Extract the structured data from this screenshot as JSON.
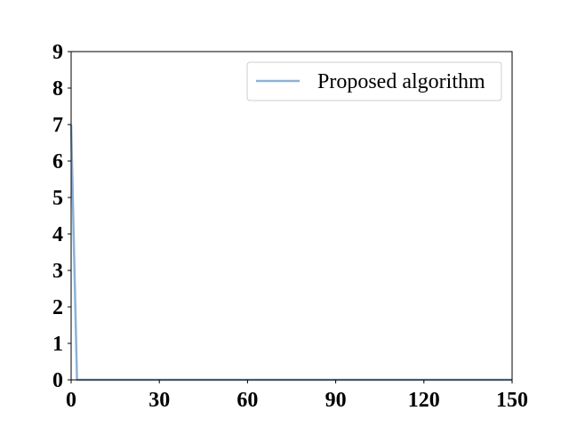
{
  "chart_data": {
    "type": "line",
    "title": "",
    "xlabel": "",
    "ylabel": "",
    "xlim": [
      0,
      150
    ],
    "ylim": [
      0,
      9
    ],
    "xticks": [
      0,
      30,
      60,
      90,
      120,
      150
    ],
    "yticks": [
      0,
      1,
      2,
      3,
      4,
      5,
      6,
      7,
      8,
      9
    ],
    "grid": false,
    "legend_position": "top-right",
    "series": [
      {
        "name": "Proposed algorithm",
        "color": "#8ab2d8",
        "x": [
          0,
          2,
          3,
          150
        ],
        "y": [
          7.0,
          0.0,
          0.0,
          0.0
        ]
      }
    ]
  }
}
